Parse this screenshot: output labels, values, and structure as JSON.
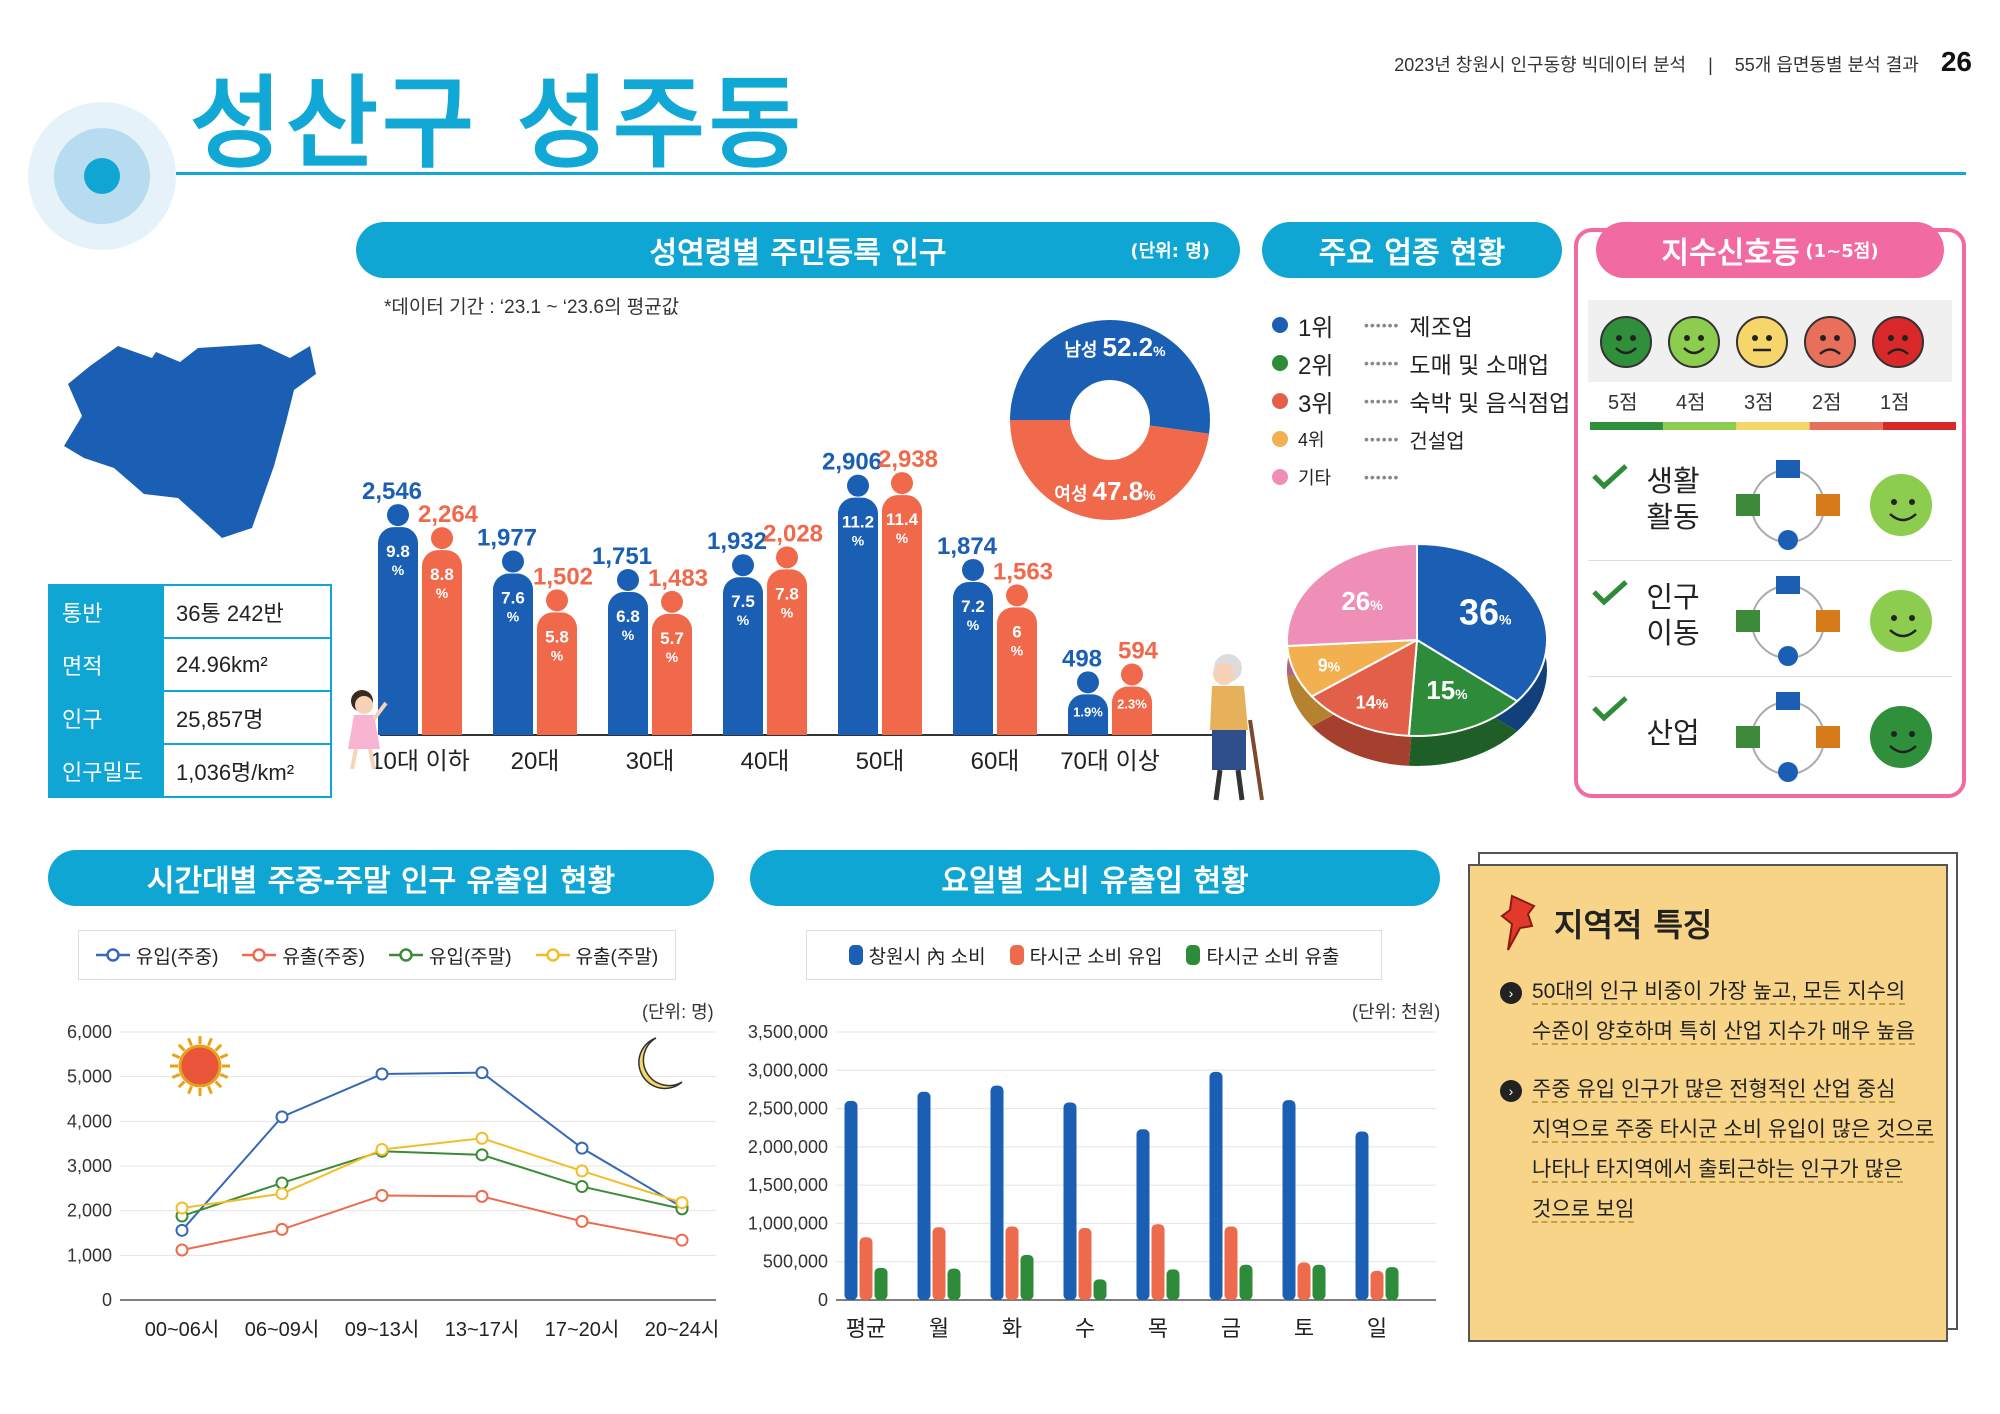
{
  "header": {
    "report_title": "2023년 창원시 인구동향 빅데이터 분석",
    "section": "55개 읍면동별 분석 결과",
    "page": "26"
  },
  "title": "성산구 성주동",
  "info": [
    {
      "k": "통반",
      "v": "36통 242반"
    },
    {
      "k": "면적",
      "v": "24.96km²"
    },
    {
      "k": "인구",
      "v": "25,857명"
    },
    {
      "k": "인구밀도",
      "v": "1,036명/km²"
    }
  ],
  "population_section": {
    "heading": "성연령별 주민등록 인구",
    "unit": "(단위: 명)",
    "note": "*데이터 기간 : ‘23.1 ~ ‘23.6의 평균값"
  },
  "industry_section": {
    "heading": "주요 업종 현황"
  },
  "signal_section": {
    "heading": "지수신호등",
    "heading_sub": "(1~5점)"
  },
  "time_section": {
    "heading": "시간대별 주중-주말 인구 유출입 현황",
    "unit": "(단위: 명)"
  },
  "day_section": {
    "heading": "요일별 소비 유출입 현황",
    "unit": "(단위: 천원)"
  },
  "colors": {
    "male": "#1a5fb4",
    "female": "#f0694a",
    "accent": "#10a6d4",
    "pink": "#f26aa2"
  },
  "chart_data": [
    {
      "type": "bar",
      "id": "age_gender",
      "categories": [
        "10대 이하",
        "20대",
        "30대",
        "40대",
        "50대",
        "60대",
        "70대 이상"
      ],
      "series": [
        {
          "name": "남성",
          "values": [
            2546,
            1977,
            1751,
            1932,
            2906,
            1874,
            498
          ],
          "labels": [
            "2,546",
            "1,977",
            "1,751",
            "1,932",
            "2,906",
            "1,874",
            "498"
          ],
          "pct": [
            "9.8",
            "7.6",
            "6.8",
            "7.5",
            "11.2",
            "7.2",
            "1.9%"
          ]
        },
        {
          "name": "여성",
          "values": [
            2264,
            1502,
            1483,
            2028,
            2938,
            1563,
            594
          ],
          "labels": [
            "2,264",
            "1,502",
            "1,483",
            "2,028",
            "2,938",
            "1,563",
            "594"
          ],
          "pct": [
            "8.8",
            "5.8",
            "5.7",
            "7.8",
            "11.4",
            "6",
            "2.3%"
          ]
        }
      ],
      "pct_unit": "%"
    },
    {
      "type": "pie",
      "id": "gender_donut",
      "slices": [
        {
          "label": "남성",
          "value": 52.2,
          "display": "52.2",
          "color": "#1a5fb4"
        },
        {
          "label": "여성",
          "value": 47.8,
          "display": "47.8",
          "color": "#f0694a"
        }
      ],
      "unit": "%"
    },
    {
      "type": "pie",
      "id": "industry_pie",
      "ranks": [
        {
          "rank": "1위",
          "name": "제조업",
          "color": "#1a5fb4"
        },
        {
          "rank": "2위",
          "name": "도매 및 소매업",
          "color": "#2e8b3a"
        },
        {
          "rank": "3위",
          "name": "숙박 및 음식점업",
          "color": "#e2604a"
        },
        {
          "rank": "4위",
          "name": "건설업",
          "color": "#f3b04f"
        },
        {
          "rank": "기타",
          "name": "",
          "color": "#ef8fb7"
        }
      ],
      "slices": [
        {
          "label": "제조업",
          "value": 36,
          "display": "36",
          "color": "#1a5fb4"
        },
        {
          "label": "도매 및 소매업",
          "value": 15,
          "display": "15",
          "color": "#2e8b3a"
        },
        {
          "label": "숙박 및 음식점업",
          "value": 14,
          "display": "14",
          "color": "#e2604a"
        },
        {
          "label": "건설업",
          "value": 9,
          "display": "9",
          "color": "#f3b04f"
        },
        {
          "label": "기타",
          "value": 26,
          "display": "26",
          "color": "#ef8fb7"
        }
      ],
      "unit": "%"
    },
    {
      "type": "line",
      "id": "time_flow",
      "categories": [
        "00~06시",
        "06~09시",
        "09~13시",
        "13~17시",
        "17~20시",
        "20~24시"
      ],
      "ylim": [
        0,
        6000
      ],
      "yticks": [
        "0",
        "1,000",
        "2,000",
        "3,000",
        "4,000",
        "5,000",
        "6,000"
      ],
      "series": [
        {
          "name": "유입(주중)",
          "color": "#3569b8",
          "values": [
            1560,
            4100,
            5060,
            5090,
            3400,
            2080
          ]
        },
        {
          "name": "유출(주중)",
          "color": "#ee6a4d",
          "values": [
            1120,
            1580,
            2340,
            2320,
            1760,
            1340
          ]
        },
        {
          "name": "유입(주말)",
          "color": "#3c8a3a",
          "values": [
            1880,
            2620,
            3330,
            3250,
            2540,
            2040
          ]
        },
        {
          "name": "유출(주말)",
          "color": "#f1be2a",
          "values": [
            2060,
            2380,
            3370,
            3620,
            2890,
            2180
          ]
        }
      ]
    },
    {
      "type": "bar",
      "id": "day_consumption",
      "categories": [
        "평균",
        "월",
        "화",
        "수",
        "목",
        "금",
        "토",
        "일"
      ],
      "ylim": [
        0,
        3500000
      ],
      "yticks": [
        "0",
        "500,000",
        "1,000,000",
        "1,500,000",
        "2,000,000",
        "2,500,000",
        "3,000,000",
        "3,500,000"
      ],
      "series": [
        {
          "name": "창원시 內 소비",
          "color": "#1a5fb4",
          "values": [
            2600000,
            2720000,
            2800000,
            2580000,
            2230000,
            2980000,
            2610000,
            2200000
          ]
        },
        {
          "name": "타시군 소비 유입",
          "color": "#ee6a4d",
          "values": [
            820000,
            950000,
            960000,
            940000,
            990000,
            960000,
            490000,
            380000
          ]
        },
        {
          "name": "타시군 소비 유출",
          "color": "#2e8b3a",
          "values": [
            420000,
            410000,
            590000,
            270000,
            400000,
            460000,
            460000,
            430000
          ]
        }
      ]
    }
  ],
  "signals": {
    "scores": [
      "5점",
      "4점",
      "3점",
      "2점",
      "1점"
    ],
    "score_colors": [
      "#2f8f3a",
      "#8ccd4f",
      "#f6d56a",
      "#e8705a",
      "#d8282a"
    ],
    "items": [
      {
        "label_1": "생활",
        "label_2": "활동",
        "score": 4,
        "color": "#8ccd4f"
      },
      {
        "label_1": "인구",
        "label_2": "이동",
        "score": 4,
        "color": "#8ccd4f"
      },
      {
        "label_1": "산업",
        "label_2": "",
        "score": 5,
        "color": "#2f8f3a"
      }
    ]
  },
  "features": {
    "heading": "지역적 특징",
    "items": [
      [
        "50대의 인구 비중이 가장 높고, 모든 지수의",
        "수준이 양호하며 특히 산업 지수가 매우 높음"
      ],
      [
        "주중 유입 인구가 많은 전형적인 산업 중심",
        "지역으로 주중 타시군 소비 유입이 많은 것으로",
        "나타나 타지역에서 출퇴근하는 인구가 많은",
        "것으로 보임"
      ]
    ]
  }
}
